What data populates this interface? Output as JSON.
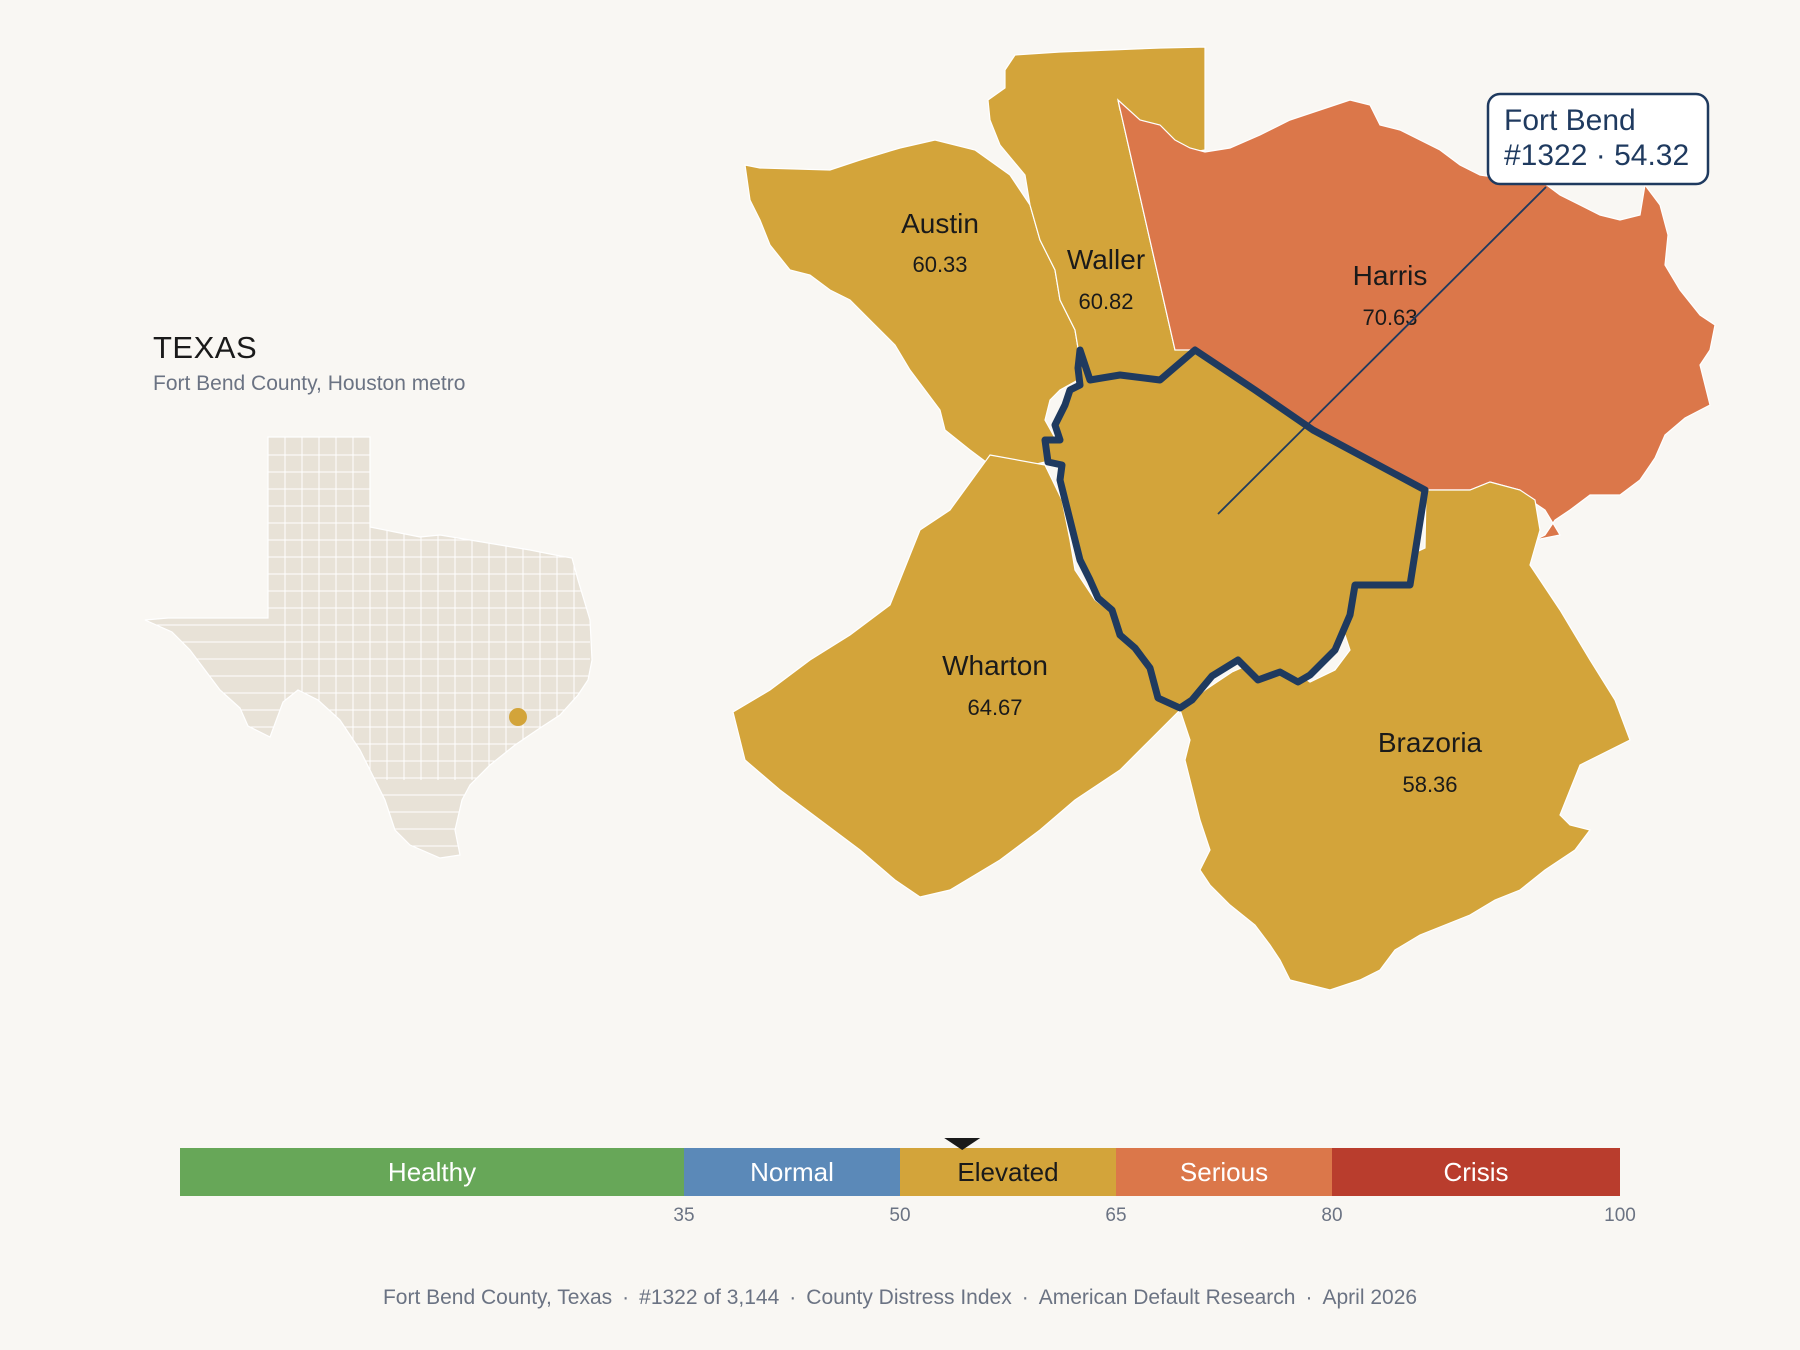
{
  "state": {
    "name": "TEXAS",
    "subtitle": "Fort Bend County, Houston metro"
  },
  "colors": {
    "background": "#f9f7f3",
    "healthy": "#67a758",
    "normal": "#5b89b8",
    "elevated": "#d3a43a",
    "serious": "#db774a",
    "crisis": "#b93d2d",
    "outline": "#1f3a5f",
    "inset_county": "#e8e2d7"
  },
  "map": {
    "focus": {
      "name": "Fort Bend",
      "rank": "#1322",
      "score": 54.32,
      "callout_line1": "Fort Bend",
      "callout_line2": "#1322 · 54.32"
    },
    "neighbors": [
      {
        "name": "Austin",
        "score": "60.33",
        "band": "elevated"
      },
      {
        "name": "Waller",
        "score": "60.82",
        "band": "elevated"
      },
      {
        "name": "Harris",
        "score": "70.63",
        "band": "serious"
      },
      {
        "name": "Wharton",
        "score": "64.67",
        "band": "elevated"
      },
      {
        "name": "Brazoria",
        "score": "58.36",
        "band": "elevated"
      }
    ]
  },
  "legend": {
    "bands": [
      {
        "label": "Healthy",
        "from": 0,
        "to": 35,
        "band": "healthy"
      },
      {
        "label": "Normal",
        "from": 35,
        "to": 50,
        "band": "normal"
      },
      {
        "label": "Elevated",
        "from": 50,
        "to": 65,
        "band": "elevated"
      },
      {
        "label": "Serious",
        "from": 65,
        "to": 80,
        "band": "serious"
      },
      {
        "label": "Crisis",
        "from": 80,
        "to": 100,
        "band": "crisis"
      }
    ],
    "ticks": [
      "35",
      "50",
      "65",
      "80",
      "100"
    ],
    "marker_value": 54.32
  },
  "footer": {
    "county": "Fort Bend County, Texas",
    "rank": "#1322 of 3,144",
    "index": "County Distress Index",
    "org": "American Default Research",
    "date": "April 2026"
  }
}
